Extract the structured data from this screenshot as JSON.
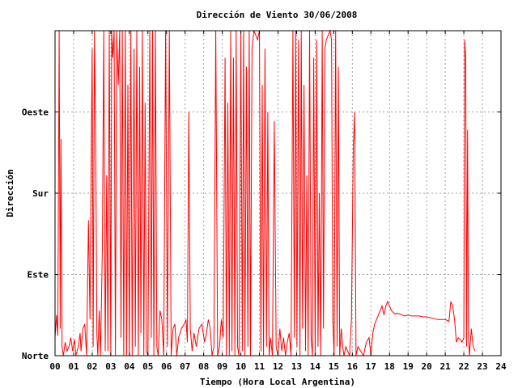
{
  "chart_data": {
    "type": "line",
    "title": "Dirección de Viento 30/06/2008",
    "xlabel": "Tiempo (Hora Local Argentina)",
    "ylabel": "Dirección",
    "xlim": [
      0,
      24
    ],
    "ylim": [
      0,
      360
    ],
    "grid": true,
    "x_ticks": [
      "00",
      "01",
      "02",
      "03",
      "04",
      "05",
      "06",
      "07",
      "08",
      "09",
      "10",
      "11",
      "12",
      "13",
      "14",
      "15",
      "16",
      "17",
      "18",
      "19",
      "20",
      "21",
      "22",
      "23",
      "24"
    ],
    "y_ticks": [
      {
        "value": 0,
        "label": "Norte"
      },
      {
        "value": 90,
        "label": "Este"
      },
      {
        "value": 180,
        "label": "Sur"
      },
      {
        "value": 270,
        "label": "Oeste"
      }
    ],
    "series": [
      {
        "color": "#ff0000",
        "points": [
          [
            0.0,
            20
          ],
          [
            0.08,
            45
          ],
          [
            0.15,
            22
          ],
          [
            0.22,
            360
          ],
          [
            0.28,
            30
          ],
          [
            0.32,
            240
          ],
          [
            0.38,
            10
          ],
          [
            0.45,
            0
          ],
          [
            0.55,
            15
          ],
          [
            0.65,
            5
          ],
          [
            0.75,
            10
          ],
          [
            0.85,
            20
          ],
          [
            0.95,
            5
          ],
          [
            1.05,
            18
          ],
          [
            1.12,
            0
          ],
          [
            1.25,
            10
          ],
          [
            1.35,
            25
          ],
          [
            1.4,
            5
          ],
          [
            1.5,
            30
          ],
          [
            1.6,
            35
          ],
          [
            1.7,
            0
          ],
          [
            1.8,
            150
          ],
          [
            1.88,
            40
          ],
          [
            1.95,
            230
          ],
          [
            2.0,
            340
          ],
          [
            2.05,
            10
          ],
          [
            2.12,
            360
          ],
          [
            2.2,
            200
          ],
          [
            2.25,
            25
          ],
          [
            2.3,
            0
          ],
          [
            2.38,
            50
          ],
          [
            2.45,
            0
          ],
          [
            2.55,
            120
          ],
          [
            2.62,
            360
          ],
          [
            2.7,
            5
          ],
          [
            2.78,
            200
          ],
          [
            2.85,
            5
          ],
          [
            2.92,
            360
          ],
          [
            3.0,
            0
          ],
          [
            3.05,
            360
          ],
          [
            3.1,
            330
          ],
          [
            3.18,
            360
          ],
          [
            3.25,
            0
          ],
          [
            3.32,
            360
          ],
          [
            3.4,
            300
          ],
          [
            3.48,
            360
          ],
          [
            3.55,
            20
          ],
          [
            3.62,
            360
          ],
          [
            3.7,
            0
          ],
          [
            3.78,
            360
          ],
          [
            3.85,
            0
          ],
          [
            3.92,
            300
          ],
          [
            4.0,
            0
          ],
          [
            4.08,
            360
          ],
          [
            4.15,
            0
          ],
          [
            4.25,
            340
          ],
          [
            4.32,
            10
          ],
          [
            4.4,
            360
          ],
          [
            4.48,
            0
          ],
          [
            4.55,
            320
          ],
          [
            4.62,
            25
          ],
          [
            4.7,
            360
          ],
          [
            4.78,
            0
          ],
          [
            4.85,
            280
          ],
          [
            4.92,
            5
          ],
          [
            5.0,
            0
          ],
          [
            5.1,
            360
          ],
          [
            5.18,
            20
          ],
          [
            5.25,
            360
          ],
          [
            5.32,
            0
          ],
          [
            5.4,
            360
          ],
          [
            5.48,
            10
          ],
          [
            5.55,
            0
          ],
          [
            5.65,
            50
          ],
          [
            5.75,
            40
          ],
          [
            5.85,
            0
          ],
          [
            5.95,
            360
          ],
          [
            6.05,
            10
          ],
          [
            6.15,
            360
          ],
          [
            6.25,
            0
          ],
          [
            6.35,
            30
          ],
          [
            6.45,
            35
          ],
          [
            6.55,
            0
          ],
          [
            6.65,
            20
          ],
          [
            6.8,
            30
          ],
          [
            6.95,
            35
          ],
          [
            7.05,
            40
          ],
          [
            7.12,
            15
          ],
          [
            7.2,
            270
          ],
          [
            7.28,
            30
          ],
          [
            7.38,
            5
          ],
          [
            7.48,
            25
          ],
          [
            7.6,
            10
          ],
          [
            7.75,
            30
          ],
          [
            7.9,
            35
          ],
          [
            8.05,
            15
          ],
          [
            8.15,
            25
          ],
          [
            8.25,
            40
          ],
          [
            8.35,
            30
          ],
          [
            8.45,
            0
          ],
          [
            8.55,
            10
          ],
          [
            8.65,
            360
          ],
          [
            8.75,
            0
          ],
          [
            8.85,
            10
          ],
          [
            8.95,
            40
          ],
          [
            9.05,
            20
          ],
          [
            9.15,
            330
          ],
          [
            9.22,
            0
          ],
          [
            9.3,
            280
          ],
          [
            9.38,
            0
          ],
          [
            9.45,
            360
          ],
          [
            9.52,
            5
          ],
          [
            9.6,
            330
          ],
          [
            9.68,
            0
          ],
          [
            9.75,
            360
          ],
          [
            9.82,
            10
          ],
          [
            9.9,
            0
          ],
          [
            10.0,
            360
          ],
          [
            10.08,
            5
          ],
          [
            10.15,
            360
          ],
          [
            10.22,
            0
          ],
          [
            10.3,
            320
          ],
          [
            10.38,
            10
          ],
          [
            10.45,
            360
          ],
          [
            10.52,
            0
          ],
          [
            10.6,
            340
          ],
          [
            10.7,
            360
          ],
          [
            10.8,
            355
          ],
          [
            10.9,
            350
          ],
          [
            11.0,
            360
          ],
          [
            11.08,
            5
          ],
          [
            11.15,
            300
          ],
          [
            11.22,
            0
          ],
          [
            11.3,
            340
          ],
          [
            11.38,
            10
          ],
          [
            11.45,
            270
          ],
          [
            11.52,
            0
          ],
          [
            11.6,
            20
          ],
          [
            11.7,
            0
          ],
          [
            11.8,
            260
          ],
          [
            11.9,
            10
          ],
          [
            12.0,
            0
          ],
          [
            12.1,
            30
          ],
          [
            12.2,
            5
          ],
          [
            12.3,
            20
          ],
          [
            12.4,
            0
          ],
          [
            12.5,
            15
          ],
          [
            12.6,
            25
          ],
          [
            12.7,
            0
          ],
          [
            12.8,
            360
          ],
          [
            12.88,
            20
          ],
          [
            12.95,
            360
          ],
          [
            13.02,
            10
          ],
          [
            13.1,
            350
          ],
          [
            13.18,
            0
          ],
          [
            13.25,
            360
          ],
          [
            13.32,
            30
          ],
          [
            13.4,
            300
          ],
          [
            13.48,
            5
          ],
          [
            13.55,
            200
          ],
          [
            13.62,
            0
          ],
          [
            13.7,
            360
          ],
          [
            13.78,
            20
          ],
          [
            13.85,
            0
          ],
          [
            13.92,
            330
          ],
          [
            14.0,
            0
          ],
          [
            14.08,
            350
          ],
          [
            14.15,
            10
          ],
          [
            14.22,
            180
          ],
          [
            14.3,
            0
          ],
          [
            14.38,
            360
          ],
          [
            14.45,
            30
          ],
          [
            14.52,
            340
          ],
          [
            14.6,
            350
          ],
          [
            14.7,
            355
          ],
          [
            14.8,
            360
          ],
          [
            14.88,
            350
          ],
          [
            14.95,
            40
          ],
          [
            15.02,
            0
          ],
          [
            15.1,
            360
          ],
          [
            15.18,
            10
          ],
          [
            15.25,
            320
          ],
          [
            15.32,
            0
          ],
          [
            15.4,
            30
          ],
          [
            15.48,
            10
          ],
          [
            15.55,
            0
          ],
          [
            15.65,
            10
          ],
          [
            15.75,
            5
          ],
          [
            15.85,
            0
          ],
          [
            15.95,
            40
          ],
          [
            16.05,
            230
          ],
          [
            16.12,
            270
          ],
          [
            16.2,
            0
          ],
          [
            16.3,
            10
          ],
          [
            16.45,
            5
          ],
          [
            16.6,
            0
          ],
          [
            16.75,
            15
          ],
          [
            16.9,
            20
          ],
          [
            17.0,
            0
          ],
          [
            17.1,
            25
          ],
          [
            17.2,
            35
          ],
          [
            17.3,
            40
          ],
          [
            17.4,
            45
          ],
          [
            17.5,
            50
          ],
          [
            17.6,
            55
          ],
          [
            17.7,
            45
          ],
          [
            17.8,
            55
          ],
          [
            17.9,
            60
          ],
          [
            18.0,
            55
          ],
          [
            18.1,
            50
          ],
          [
            18.2,
            48
          ],
          [
            18.3,
            46
          ],
          [
            18.4,
            47
          ],
          [
            18.6,
            46
          ],
          [
            18.8,
            44
          ],
          [
            19.0,
            45
          ],
          [
            19.2,
            44
          ],
          [
            19.4,
            44
          ],
          [
            19.6,
            44
          ],
          [
            19.8,
            43
          ],
          [
            20.0,
            43
          ],
          [
            20.2,
            42
          ],
          [
            20.4,
            41
          ],
          [
            20.6,
            40
          ],
          [
            20.8,
            40
          ],
          [
            21.0,
            40
          ],
          [
            21.2,
            38
          ],
          [
            21.3,
            60
          ],
          [
            21.4,
            55
          ],
          [
            21.5,
            40
          ],
          [
            21.6,
            15
          ],
          [
            21.7,
            20
          ],
          [
            21.8,
            18
          ],
          [
            21.9,
            15
          ],
          [
            22.0,
            20
          ],
          [
            22.05,
            350
          ],
          [
            22.1,
            330
          ],
          [
            22.15,
            10
          ],
          [
            22.2,
            250
          ],
          [
            22.25,
            20
          ],
          [
            22.3,
            0
          ],
          [
            22.4,
            30
          ],
          [
            22.5,
            10
          ],
          [
            22.6,
            5
          ]
        ]
      }
    ]
  }
}
